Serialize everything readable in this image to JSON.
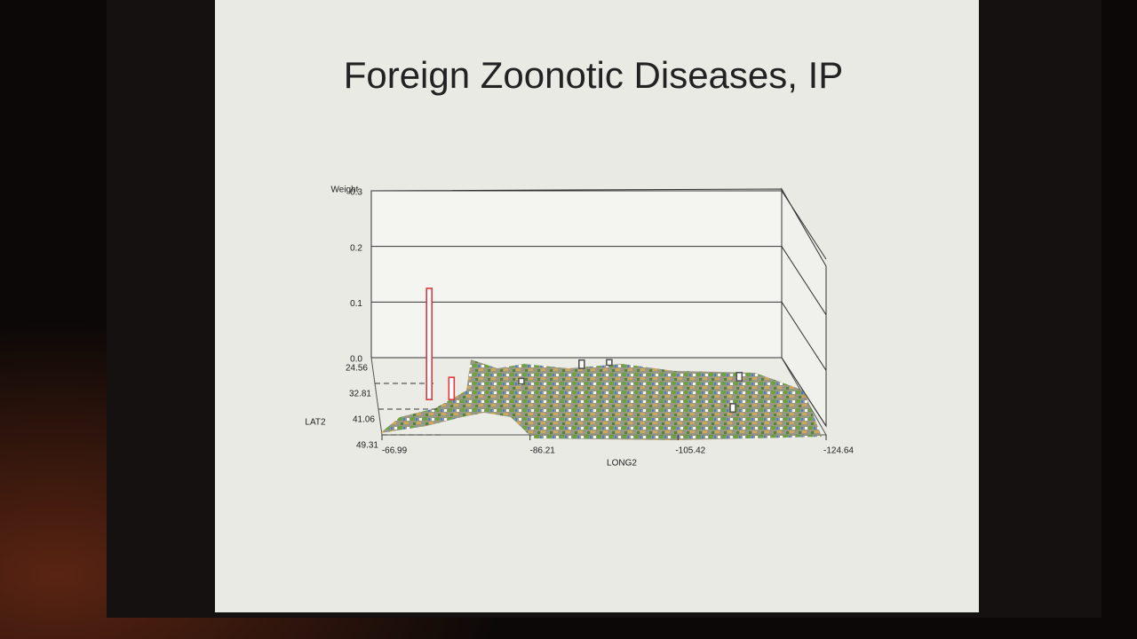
{
  "chart_data": {
    "type": "bar3d",
    "title": "Foreign Zoonotic Diseases, IP",
    "z_label": "Weight",
    "y_label": "LAT2",
    "x_label": "LONG2",
    "zlim": [
      0,
      0.3
    ],
    "zticks": [
      {
        "value": 0,
        "label": "0.0"
      },
      0.1,
      0.2,
      0.3
    ],
    "ylim": [
      24.56,
      49.31
    ],
    "yticks": [
      24.56,
      32.81,
      41.06,
      49.31
    ],
    "xlim": [
      -66.99,
      -124.64
    ],
    "xticks": [
      -66.99,
      -86.21,
      -105.42,
      -124.64
    ],
    "grid": true,
    "bars": [
      {
        "long": -74,
        "lat": 38,
        "value": 0.2,
        "color": "#e0383c"
      },
      {
        "long": -77,
        "lat": 38,
        "value": 0.04,
        "color": "#e0383c"
      },
      {
        "long": -96,
        "lat": 28,
        "value": 0.015,
        "color": "#555555"
      },
      {
        "long": -100,
        "lat": 27,
        "value": 0.01,
        "color": "#555555"
      },
      {
        "long": -117,
        "lat": 32,
        "value": 0.015,
        "color": "#555555"
      },
      {
        "long": -114,
        "lat": 42,
        "value": 0.015,
        "color": "#555555"
      },
      {
        "long": -87,
        "lat": 33,
        "value": 0.01,
        "color": "#555555"
      }
    ]
  }
}
